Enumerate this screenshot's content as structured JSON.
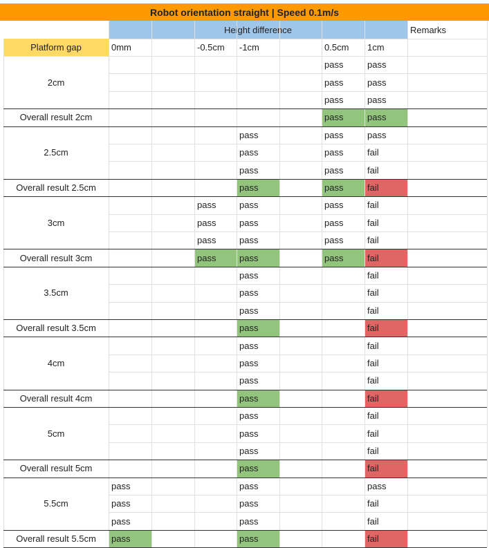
{
  "title": "Robot orientation straight | Speed 0.1m/s",
  "header": {
    "height_difference": "Height difference",
    "remarks": "Remarks",
    "platform_gap": "Platform gap",
    "columns": [
      "0mm",
      "",
      "-0.5cm",
      "-1cm",
      "",
      "0.5cm",
      "1cm"
    ]
  },
  "colors": {
    "title_bg": "#ff9900",
    "height_diff_bg": "#9fc5e8",
    "platform_gap_bg": "#ffd966",
    "pass_bg": "#93c47d",
    "fail_bg": "#e06666"
  },
  "groups": [
    {
      "gap": "2cm",
      "rows": [
        [
          "",
          "",
          "",
          "",
          "",
          "pass",
          "pass"
        ],
        [
          "",
          "",
          "",
          "",
          "",
          "pass",
          "pass"
        ],
        [
          "",
          "",
          "",
          "",
          "",
          "pass",
          "pass"
        ]
      ],
      "overall_label": "Overall result 2cm",
      "overall": [
        "",
        "",
        "",
        "",
        "",
        "pass",
        "pass"
      ]
    },
    {
      "gap": "2.5cm",
      "rows": [
        [
          "",
          "",
          "",
          "pass",
          "",
          "pass",
          "pass"
        ],
        [
          "",
          "",
          "",
          "pass",
          "",
          "pass",
          "fail"
        ],
        [
          "",
          "",
          "",
          "pass",
          "",
          "pass",
          "fail"
        ]
      ],
      "overall_label": "Overall result 2.5cm",
      "overall": [
        "",
        "",
        "",
        "pass",
        "",
        "pass",
        "fail"
      ]
    },
    {
      "gap": "3cm",
      "rows": [
        [
          "",
          "",
          "pass",
          "pass",
          "",
          "pass",
          "fail"
        ],
        [
          "",
          "",
          "pass",
          "pass",
          "",
          "pass",
          "fail"
        ],
        [
          "",
          "",
          "pass",
          "pass",
          "",
          "pass",
          "fail"
        ]
      ],
      "overall_label": "Overall result 3cm",
      "overall": [
        "",
        "",
        "pass",
        "pass",
        "",
        "pass",
        "fail"
      ]
    },
    {
      "gap": "3.5cm",
      "rows": [
        [
          "",
          "",
          "",
          "pass",
          "",
          "",
          "fail"
        ],
        [
          "",
          "",
          "",
          "pass",
          "",
          "",
          "fail"
        ],
        [
          "",
          "",
          "",
          "pass",
          "",
          "",
          "fail"
        ]
      ],
      "overall_label": "Overall result 3.5cm",
      "overall": [
        "",
        "",
        "",
        "pass",
        "",
        "",
        "fail"
      ]
    },
    {
      "gap": "4cm",
      "rows": [
        [
          "",
          "",
          "",
          "pass",
          "",
          "",
          "fail"
        ],
        [
          "",
          "",
          "",
          "pass",
          "",
          "",
          "fail"
        ],
        [
          "",
          "",
          "",
          "pass",
          "",
          "",
          "fail"
        ]
      ],
      "overall_label": "Overall result 4cm",
      "overall": [
        "",
        "",
        "",
        "pass",
        "",
        "",
        "fail"
      ]
    },
    {
      "gap": "5cm",
      "rows": [
        [
          "",
          "",
          "",
          "pass",
          "",
          "",
          "fail"
        ],
        [
          "",
          "",
          "",
          "pass",
          "",
          "",
          "fail"
        ],
        [
          "",
          "",
          "",
          "pass",
          "",
          "",
          "fail"
        ]
      ],
      "overall_label": "Overall result 5cm",
      "overall": [
        "",
        "",
        "",
        "pass",
        "",
        "",
        "fail"
      ]
    },
    {
      "gap": "5.5cm",
      "rows": [
        [
          "pass",
          "",
          "",
          "pass",
          "",
          "",
          "pass"
        ],
        [
          "pass",
          "",
          "",
          "pass",
          "",
          "",
          "fail"
        ],
        [
          "pass",
          "",
          "",
          "pass",
          "",
          "",
          "fail"
        ]
      ],
      "overall_label": "Overall result 5.5cm",
      "overall": [
        "pass",
        "",
        "",
        "pass",
        "",
        "",
        "fail"
      ]
    }
  ]
}
